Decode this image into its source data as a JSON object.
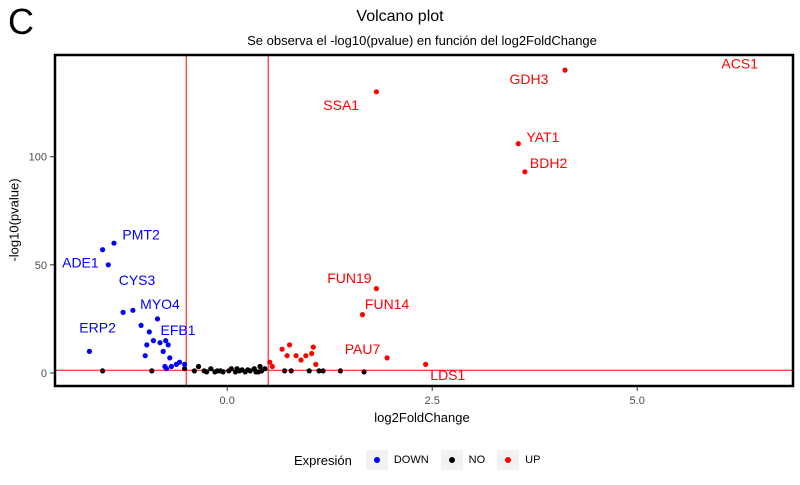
{
  "panel_tag": "C",
  "chart_data": {
    "type": "scatter",
    "title": "Volcano plot",
    "subtitle": "Se observa el -log10(pvalue) en función del log2FoldChange",
    "xlabel": "log2FoldChange",
    "ylabel": "-log10(pvalue)",
    "xlim": [
      -2.1,
      6.9
    ],
    "ylim": [
      -6,
      147
    ],
    "x_ticks": [
      0.0,
      2.5,
      5.0
    ],
    "x_tick_labels": [
      "0.0",
      "2.5",
      "5.0"
    ],
    "y_ticks": [
      0,
      50,
      100
    ],
    "y_tick_labels": [
      "0",
      "50",
      "100"
    ],
    "grid": false,
    "vlines": [
      -0.5,
      0.5
    ],
    "hline": 1.3,
    "colors": {
      "DOWN": "#0000ff",
      "NO": "#000000",
      "UP": "#ff0000",
      "threshold_lines": "#ff0000"
    },
    "legend": {
      "title": "Expresión",
      "position": "bottom",
      "entries": [
        {
          "key": "DOWN",
          "label": "DOWN"
        },
        {
          "key": "NO",
          "label": "NO"
        },
        {
          "key": "UP",
          "label": "UP"
        }
      ]
    },
    "series": [
      {
        "name": "DOWN",
        "points": [
          [
            -1.52,
            57
          ],
          [
            -1.38,
            60
          ],
          [
            -1.45,
            50
          ],
          [
            -1.68,
            10
          ],
          [
            -1.27,
            28
          ],
          [
            -1.15,
            29
          ],
          [
            -1.05,
            22
          ],
          [
            -0.85,
            25
          ],
          [
            -0.95,
            19
          ],
          [
            -0.9,
            15
          ],
          [
            -0.98,
            13
          ],
          [
            -0.82,
            14
          ],
          [
            -0.75,
            15
          ],
          [
            -0.72,
            13
          ],
          [
            -0.78,
            10
          ],
          [
            -1.0,
            8
          ],
          [
            -0.7,
            7
          ],
          [
            -0.62,
            4
          ],
          [
            -0.58,
            5
          ],
          [
            -0.52,
            4
          ],
          [
            -0.76,
            3
          ],
          [
            -0.68,
            3
          ],
          [
            -0.74,
            2
          ]
        ]
      },
      {
        "name": "NO",
        "points": [
          [
            -1.52,
            1
          ],
          [
            -0.92,
            1
          ],
          [
            -0.52,
            2
          ],
          [
            -0.35,
            3
          ],
          [
            -0.28,
            1
          ],
          [
            -0.2,
            2
          ],
          [
            -0.12,
            1
          ],
          [
            -0.05,
            0.5
          ],
          [
            0.02,
            1
          ],
          [
            0.1,
            0.5
          ],
          [
            0.15,
            1
          ],
          [
            0.22,
            0.5
          ],
          [
            0.28,
            1
          ],
          [
            0.33,
            2
          ],
          [
            0.38,
            0.5
          ],
          [
            0.42,
            1
          ],
          [
            0.46,
            2
          ],
          [
            0.4,
            3
          ],
          [
            0.35,
            0.5
          ],
          [
            0.05,
            2
          ],
          [
            -0.15,
            0.5
          ],
          [
            -0.4,
            1
          ],
          [
            0.12,
            2
          ],
          [
            0.25,
            1.5
          ],
          [
            0.7,
            1
          ],
          [
            0.78,
            1
          ],
          [
            1.0,
            1
          ],
          [
            1.12,
            1
          ],
          [
            1.17,
            1
          ],
          [
            1.38,
            1
          ],
          [
            1.67,
            0.5
          ],
          [
            -0.25,
            0.5
          ],
          [
            0.18,
            1.5
          ],
          [
            -0.08,
            1
          ]
        ]
      },
      {
        "name": "UP",
        "points": [
          [
            4.12,
            140
          ],
          [
            1.82,
            130
          ],
          [
            3.55,
            106
          ],
          [
            3.63,
            93
          ],
          [
            1.82,
            39
          ],
          [
            1.65,
            27
          ],
          [
            1.95,
            7
          ],
          [
            2.42,
            4
          ],
          [
            0.67,
            11
          ],
          [
            0.73,
            8
          ],
          [
            0.76,
            13
          ],
          [
            0.84,
            8
          ],
          [
            0.9,
            6
          ],
          [
            0.96,
            8
          ],
          [
            1.03,
            9
          ],
          [
            1.05,
            12
          ],
          [
            1.08,
            4
          ],
          [
            0.52,
            5
          ],
          [
            0.55,
            3
          ]
        ]
      }
    ],
    "annotations": [
      {
        "text": "ACS1",
        "x": 6.25,
        "y": 143,
        "series": "UP"
      },
      {
        "text": "GDH3",
        "x": 3.68,
        "y": 136,
        "series": "UP"
      },
      {
        "text": "SSA1",
        "x": 1.39,
        "y": 124,
        "series": "UP"
      },
      {
        "text": "YAT1",
        "x": 3.85,
        "y": 109,
        "series": "UP"
      },
      {
        "text": "BDH2",
        "x": 3.92,
        "y": 97,
        "series": "UP"
      },
      {
        "text": "FUN19",
        "x": 1.49,
        "y": 44,
        "series": "UP"
      },
      {
        "text": "FUN14",
        "x": 1.95,
        "y": 32,
        "series": "UP"
      },
      {
        "text": "PAU7",
        "x": 1.65,
        "y": 11,
        "series": "UP"
      },
      {
        "text": "LDS1",
        "x": 2.69,
        "y": -1,
        "series": "UP"
      },
      {
        "text": "PMT2",
        "x": -1.05,
        "y": 64,
        "series": "DOWN"
      },
      {
        "text": "ADE1",
        "x": -1.79,
        "y": 51,
        "series": "DOWN"
      },
      {
        "text": "CYS3",
        "x": -1.1,
        "y": 43,
        "series": "DOWN"
      },
      {
        "text": "MYO4",
        "x": -0.82,
        "y": 32,
        "series": "DOWN"
      },
      {
        "text": "ERP2",
        "x": -1.58,
        "y": 21,
        "series": "DOWN"
      },
      {
        "text": "EFB1",
        "x": -0.6,
        "y": 20,
        "series": "DOWN"
      }
    ]
  }
}
